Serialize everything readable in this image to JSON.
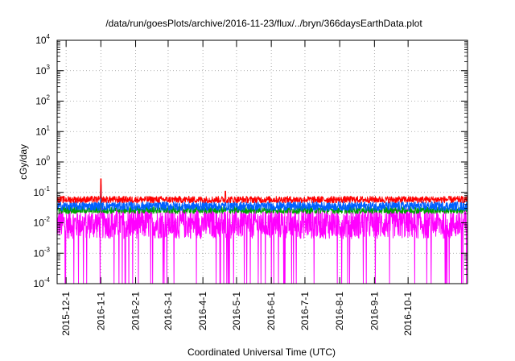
{
  "chart_data": {
    "type": "line",
    "title": "/data/run/goesPlots/archive/2016-11-23/flux/../bryn/366daysEarthData.plot",
    "xlabel": "Coordinated Universal Time (UTC)",
    "ylabel": "cGy/day",
    "yscale": "log",
    "ylim": [
      0.0001,
      10000
    ],
    "xlim": [
      "2015-11-23",
      "2016-11-23"
    ],
    "y_ticks": [
      {
        "value": 0.0001,
        "base": "10",
        "exp": "-4"
      },
      {
        "value": 0.001,
        "base": "10",
        "exp": "-3"
      },
      {
        "value": 0.01,
        "base": "10",
        "exp": "-2"
      },
      {
        "value": 0.1,
        "base": "10",
        "exp": "-1"
      },
      {
        "value": 1,
        "base": "10",
        "exp": "0"
      },
      {
        "value": 10,
        "base": "10",
        "exp": "1"
      },
      {
        "value": 100,
        "base": "10",
        "exp": "2"
      },
      {
        "value": 1000,
        "base": "10",
        "exp": "3"
      },
      {
        "value": 10000,
        "base": "10",
        "exp": "4"
      }
    ],
    "x_ticks": [
      "2015-12-1",
      "2016-1-1",
      "2016-2-1",
      "2016-3-1",
      "2016-4-1",
      "2016-5-1",
      "2016-6-1",
      "2016-7-1",
      "2016-8-1",
      "2016-9-1",
      "2016-10-1"
    ],
    "grid": true,
    "legend": "none",
    "series": [
      {
        "color": "#ff00ff",
        "typical_range": [
          0.003,
          0.03
        ],
        "dropouts": true,
        "spikes": [
          {
            "date": "2016-1-1",
            "value": 0.08
          }
        ]
      },
      {
        "color": "#00a000",
        "typical_range": [
          0.02,
          0.035
        ],
        "spikes": [
          {
            "date": "2016-1-1",
            "value": 0.12
          }
        ]
      },
      {
        "color": "#0060ff",
        "typical_range": [
          0.025,
          0.05
        ],
        "spikes": [
          {
            "date": "2016-1-1",
            "value": 0.18
          }
        ]
      },
      {
        "color": "#ff0000",
        "typical_range": [
          0.045,
          0.075
        ],
        "spikes": [
          {
            "date": "2016-1-1",
            "value": 0.28
          },
          {
            "date": "2016-4-21",
            "value": 0.11
          }
        ]
      }
    ]
  }
}
